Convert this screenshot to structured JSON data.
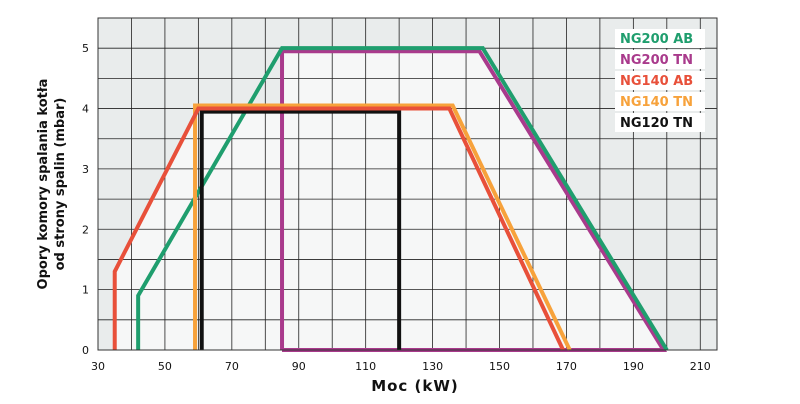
{
  "chart_data": {
    "type": "line",
    "xlabel": "Moc (kW)",
    "ylabel": "Opory komory spalania kotła od strony spalin (mbar)",
    "ylabel_lines": [
      "Opory komory spalania kotła",
      "od strony spalin (mbar)"
    ],
    "xlim": [
      30,
      215
    ],
    "ylim": [
      0,
      5.5
    ],
    "xticks": [
      30,
      50,
      70,
      90,
      110,
      130,
      150,
      170,
      190,
      210
    ],
    "yticks": [
      0,
      1,
      2,
      3,
      4,
      5
    ],
    "grid": true,
    "legend_position": "top-right",
    "series": [
      {
        "name": "NG200 AB",
        "color": "#1f9e6e",
        "points": [
          [
            42,
            0
          ],
          [
            42,
            0.9
          ],
          [
            85,
            5
          ],
          [
            145,
            5
          ],
          [
            200,
            0
          ]
        ]
      },
      {
        "name": "NG200 TN",
        "color": "#a93a8c",
        "points": [
          [
            85,
            0
          ],
          [
            85,
            4.95
          ],
          [
            144,
            4.95
          ],
          [
            199,
            0
          ],
          [
            85,
            0
          ]
        ]
      },
      {
        "name": "NG140 AB",
        "color": "#e8503a",
        "points": [
          [
            35,
            0
          ],
          [
            35,
            1.3
          ],
          [
            60,
            4
          ],
          [
            135,
            4
          ],
          [
            169,
            0
          ]
        ]
      },
      {
        "name": "NG140 TN",
        "color": "#f7a23b",
        "points": [
          [
            59,
            0
          ],
          [
            59,
            4.05
          ],
          [
            136,
            4.05
          ],
          [
            171,
            0
          ]
        ]
      },
      {
        "name": "NG120 TN",
        "color": "#111111",
        "points": [
          [
            61,
            0
          ],
          [
            61,
            3.95
          ],
          [
            120,
            3.95
          ],
          [
            120,
            0
          ]
        ]
      }
    ]
  }
}
